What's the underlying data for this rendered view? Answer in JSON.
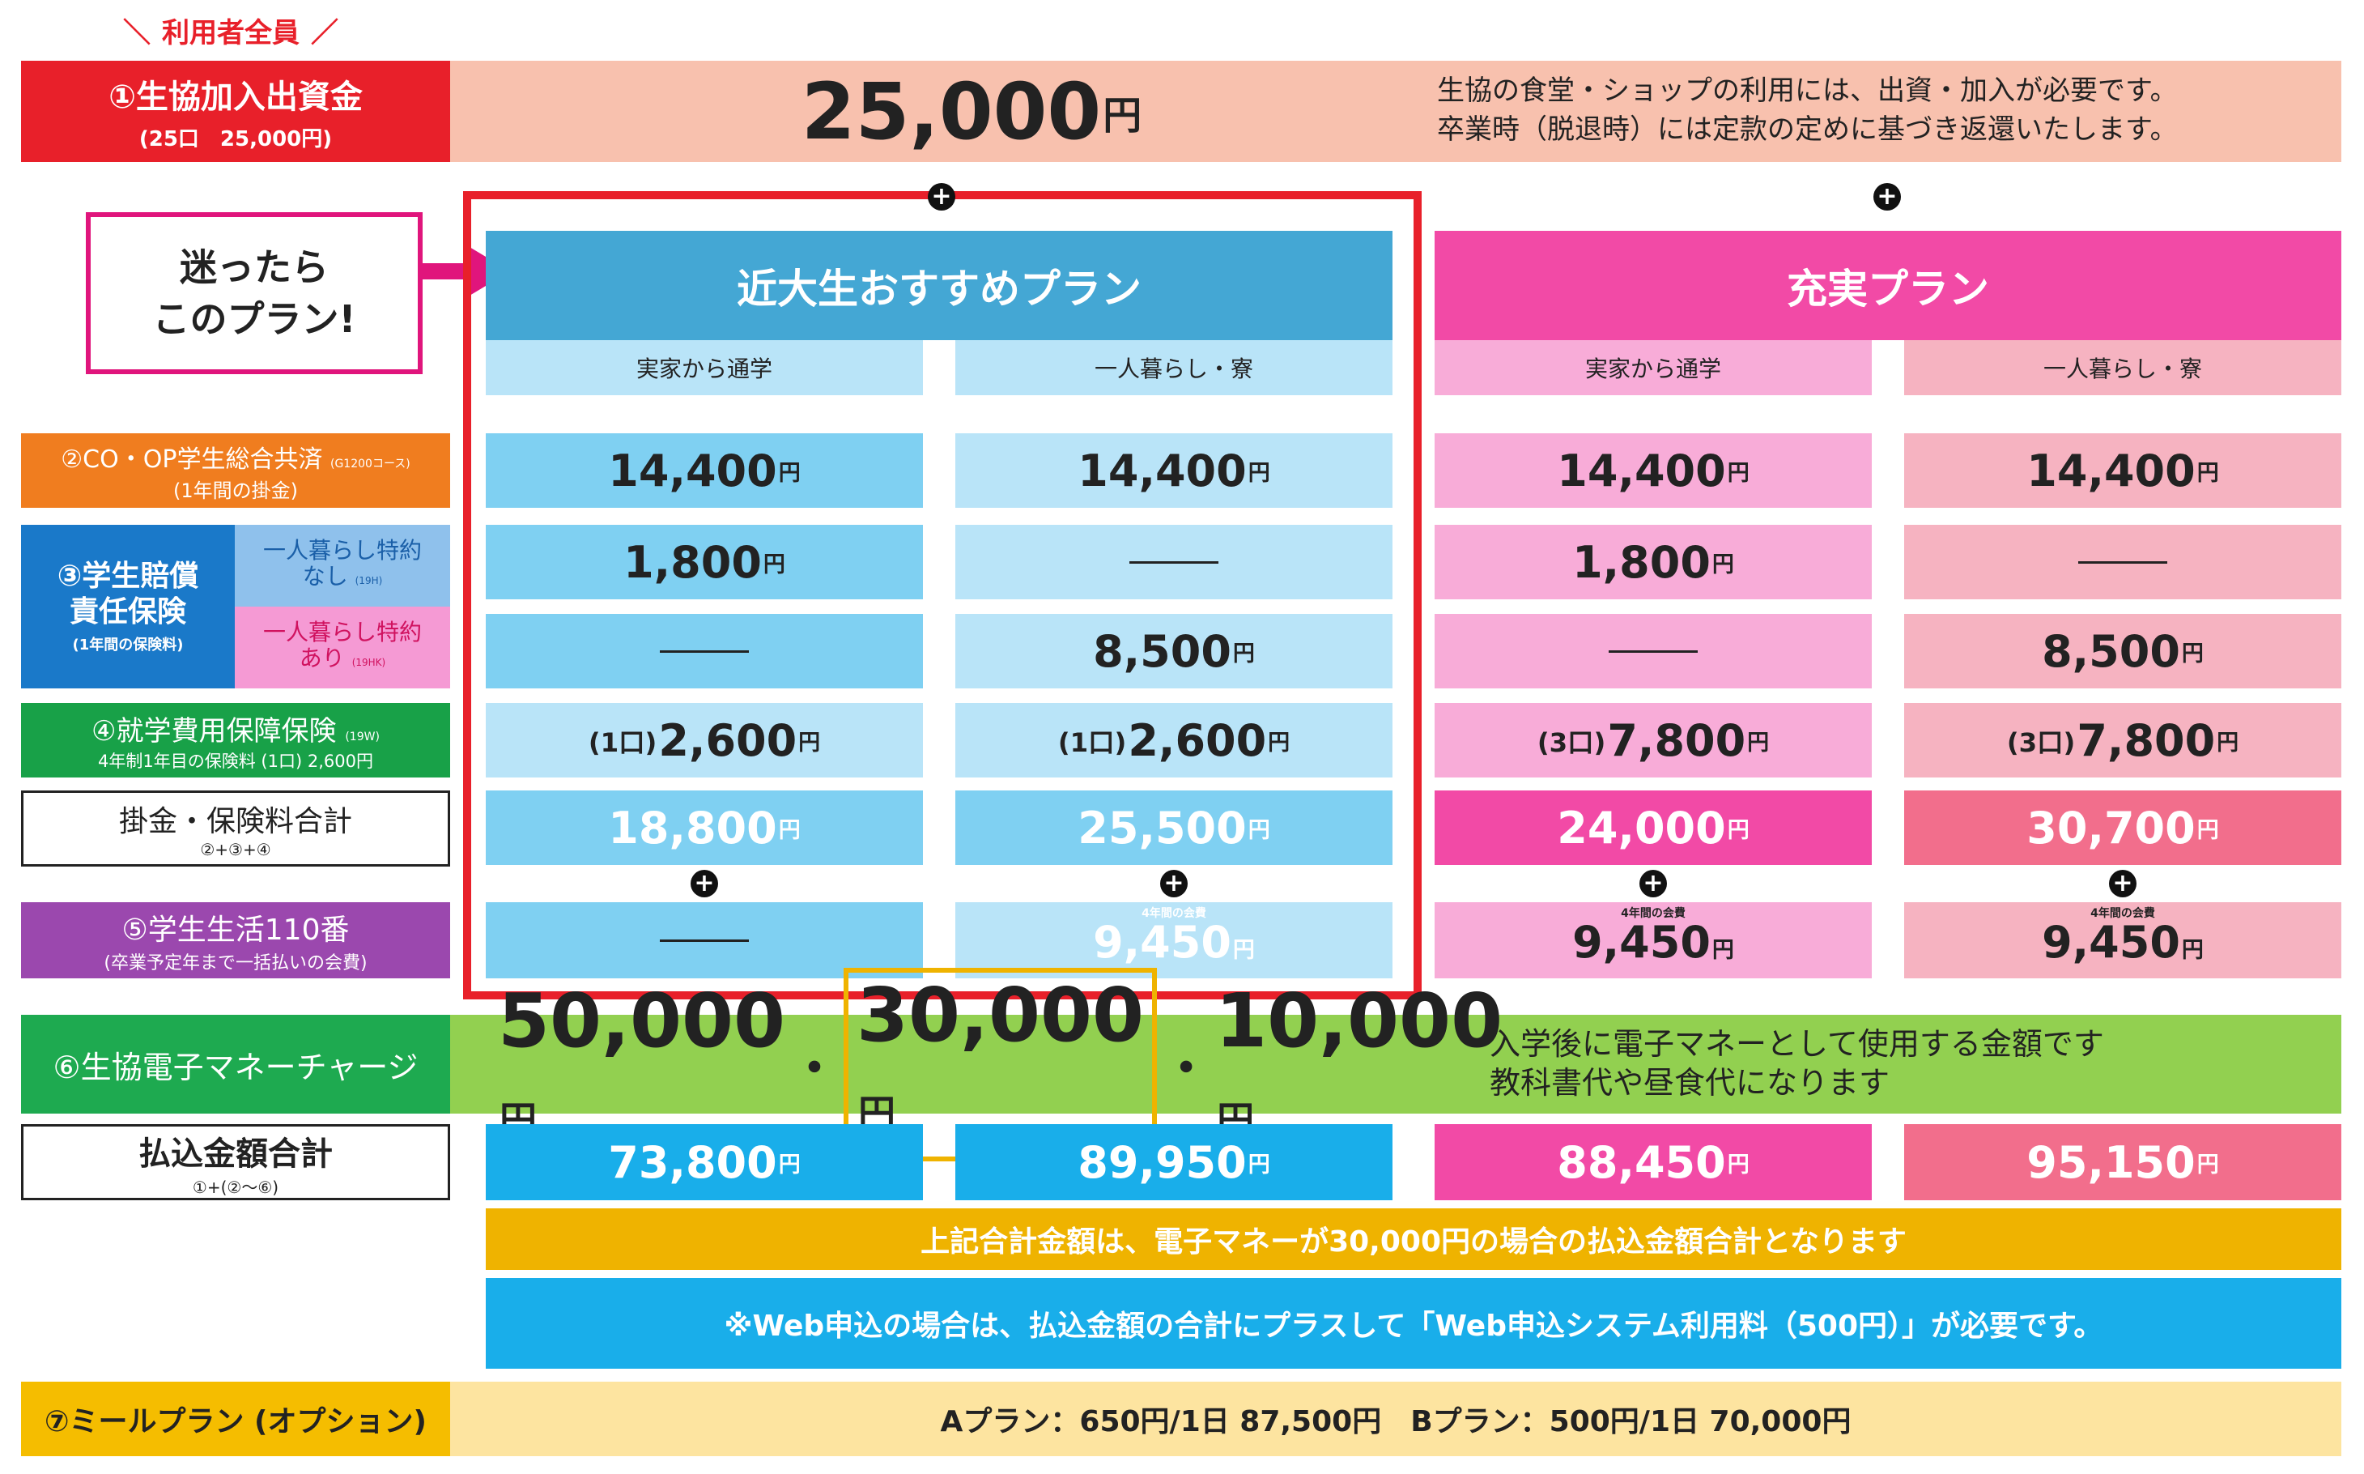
{
  "header_tag": "利用者全員",
  "row1": {
    "label": "①生協加入出資金",
    "sub": "(25口　25,000円)",
    "amount": "25,000",
    "unit": "円",
    "desc1": "生協の食堂・ショップの利用には、出資・加入が必要です。",
    "desc2": "卒業時（脱退時）には定款の定めに基づき返還いたします。"
  },
  "callout": {
    "line1": "迷ったら",
    "line2": "このプラン!"
  },
  "plans": {
    "recommended": {
      "title": "近大生おすすめプラン",
      "col_a": "実家から通学",
      "col_b": "一人暮らし・寮"
    },
    "premium": {
      "title": "充実プラン",
      "col_a": "実家から通学",
      "col_b": "一人暮らし・寮"
    }
  },
  "row_labels": {
    "kyosai": "②CO・OP学生総合共済",
    "kyosai_code": "(G1200コース)",
    "kyosai_sub": "(1年間の掛金)",
    "baisho_main1": "③学生賠償",
    "baisho_main2": "責任保険",
    "baisho_sub": "(1年間の保険料)",
    "baisho_opt1_l1": "一人暮らし特約",
    "baisho_opt1_l2": "なし",
    "baisho_opt1_code": "(19H)",
    "baisho_opt2_l1": "一人暮らし特約",
    "baisho_opt2_l2": "あり",
    "baisho_opt2_code": "(19HK)",
    "shugaku": "④就学費用保障保険",
    "shugaku_code": "(19W)",
    "shugaku_sub": "4年制1年目の保険料 (1口) 2,600円",
    "total": "掛金・保険料合計",
    "total_sub": "②+③+④",
    "life110": "⑤学生生活110番",
    "life110_sub": "(卒業予定年まで一括払いの会費)",
    "emoney": "⑥生協電子マネーチャージ",
    "pay_total": "払込金額合計",
    "pay_total_sub": "①+(②〜⑥)",
    "meal": "⑦ミールプラン (オプション)"
  },
  "values": {
    "yen": "円",
    "kyosai": [
      "14,400",
      "14,400",
      "14,400",
      "14,400"
    ],
    "baisho_nashi": [
      "1,800",
      "",
      "1,800",
      ""
    ],
    "baisho_ari": [
      "",
      "8,500",
      "",
      "8,500"
    ],
    "shugaku_prefix": [
      "(1口)",
      "(1口)",
      "(3口)",
      "(3口)"
    ],
    "shugaku": [
      "2,600",
      "2,600",
      "7,800",
      "7,800"
    ],
    "total": [
      "18,800",
      "25,500",
      "24,000",
      "30,700"
    ],
    "life110_note": "4年間の会費",
    "life110": [
      "",
      "9,450",
      "9,450",
      "9,450"
    ],
    "pay_total": [
      "73,800",
      "89,950",
      "88,450",
      "95,150"
    ]
  },
  "emoney": {
    "opt1": "50,000",
    "opt2": "30,000",
    "opt3": "10,000",
    "sep": "・",
    "desc1": "入学後に電子マネーとして使用する金額です",
    "desc2": "教科書代や昼食代になります"
  },
  "notes": {
    "note1": "上記合計金額は、電子マネーが30,000円の場合の払込金額合計となります",
    "note2": "※Web申込の場合は、払込金額の合計にプラスして「Web申込システム利用料（500円）」が必要です。"
  },
  "meal": {
    "text": "Aプラン：650円/1日 87,500円　Bプラン：500円/1日 70,000円"
  },
  "plus_sign": "+",
  "colors": {
    "red": "#e8202a",
    "salmon": "#f8c1ae",
    "blue_header": "#44a7d4",
    "blue_light": "#b9e4f8",
    "blue_cell": "#7fd0f2",
    "pink_header": "#f24aa6",
    "pink_light": "#f8acd8",
    "rose_light": "#f6b3c1",
    "green": "#92d050",
    "yellow": "#efb300"
  }
}
